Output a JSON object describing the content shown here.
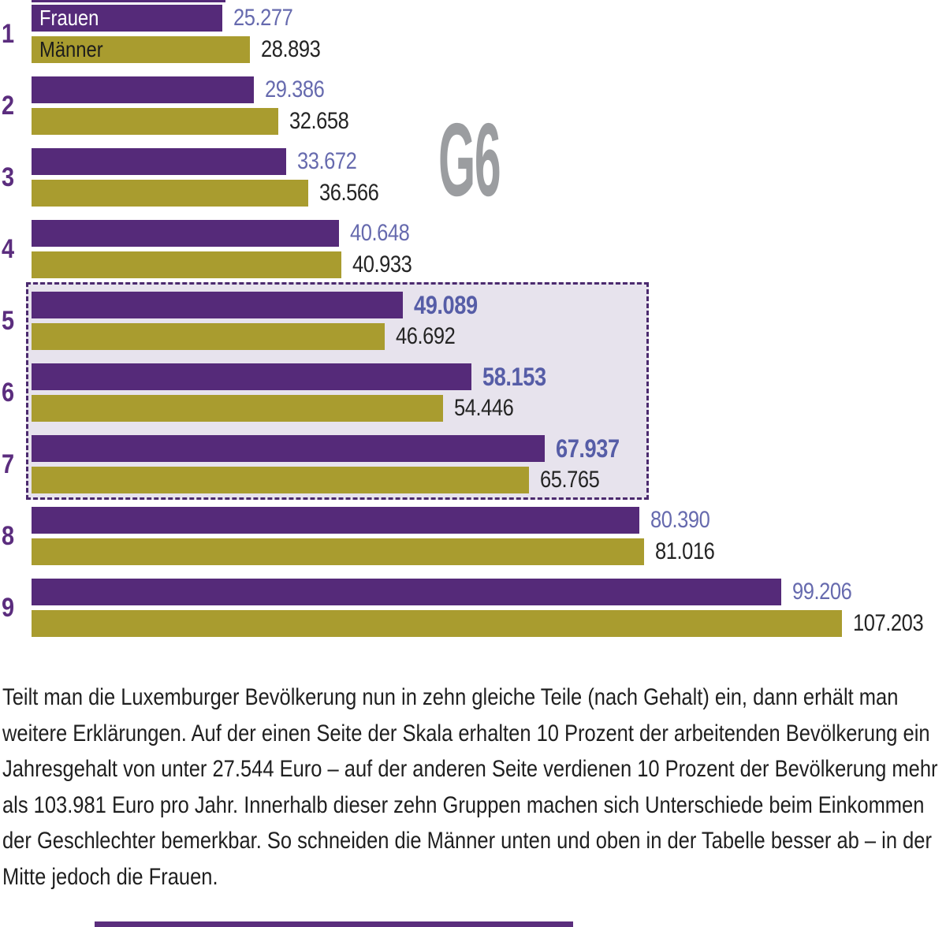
{
  "chart": {
    "g6_label": "G6",
    "chart_data": {
      "type": "bar",
      "orientation": "horizontal",
      "title": "G6",
      "categories": [
        "1",
        "2",
        "3",
        "4",
        "5",
        "6",
        "7",
        "8",
        "9"
      ],
      "series": [
        {
          "name": "Frauen",
          "values": [
            25277,
            29386,
            33672,
            40648,
            49089,
            58153,
            67937,
            80390,
            99206
          ],
          "labels": [
            "25.277",
            "29.386",
            "33.672",
            "40.648",
            "49.089",
            "58.153",
            "67.937",
            "80.390",
            "99.206"
          ],
          "color": "#552a79"
        },
        {
          "name": "Männer",
          "values": [
            28893,
            32658,
            36566,
            40933,
            46692,
            54446,
            65765,
            81016,
            107203
          ],
          "labels": [
            "28.893",
            "32.658",
            "36.566",
            "40.933",
            "46.692",
            "54.446",
            "65.765",
            "81.016",
            "107.203"
          ],
          "color": "#a99c2f"
        }
      ],
      "highlighted_categories": [
        "5",
        "6",
        "7"
      ],
      "xlim": [
        0,
        107203
      ],
      "grid": false,
      "legend_position": "inside-first-bars"
    },
    "colors": {
      "frauen_bar": "#552a79",
      "maenner_bar": "#a99c2f",
      "category_label": "#5b2d7e",
      "frauen_value_text": "#666aae",
      "maenner_value_text": "#242424",
      "g6_text": "#9b9da0",
      "highlight_box_bg": "#e7e3ed",
      "highlight_box_border": "#4b2a6e"
    }
  },
  "caption": "Teilt man die Luxemburger Bevölkerung nun in zehn gleiche Teile (nach Gehalt) ein, dann erhält man weitere Erklärungen. Auf der einen Seite der Skala erhalten 10 Prozent der arbeitenden Bevölkerung ein Jahresgehalt von unter 27.544 Euro – auf der anderen Seite verdienen 10 Prozent der Bevölkerung mehr als 103.981 Euro pro Jahr. Innerhalb dieser zehn Gruppen machen sich Unterschiede beim Einkommen der Geschlechter bemerkbar. So schneiden die Männer unten und oben in der Tabelle besser ab – in der Mitte jedoch die Frauen."
}
